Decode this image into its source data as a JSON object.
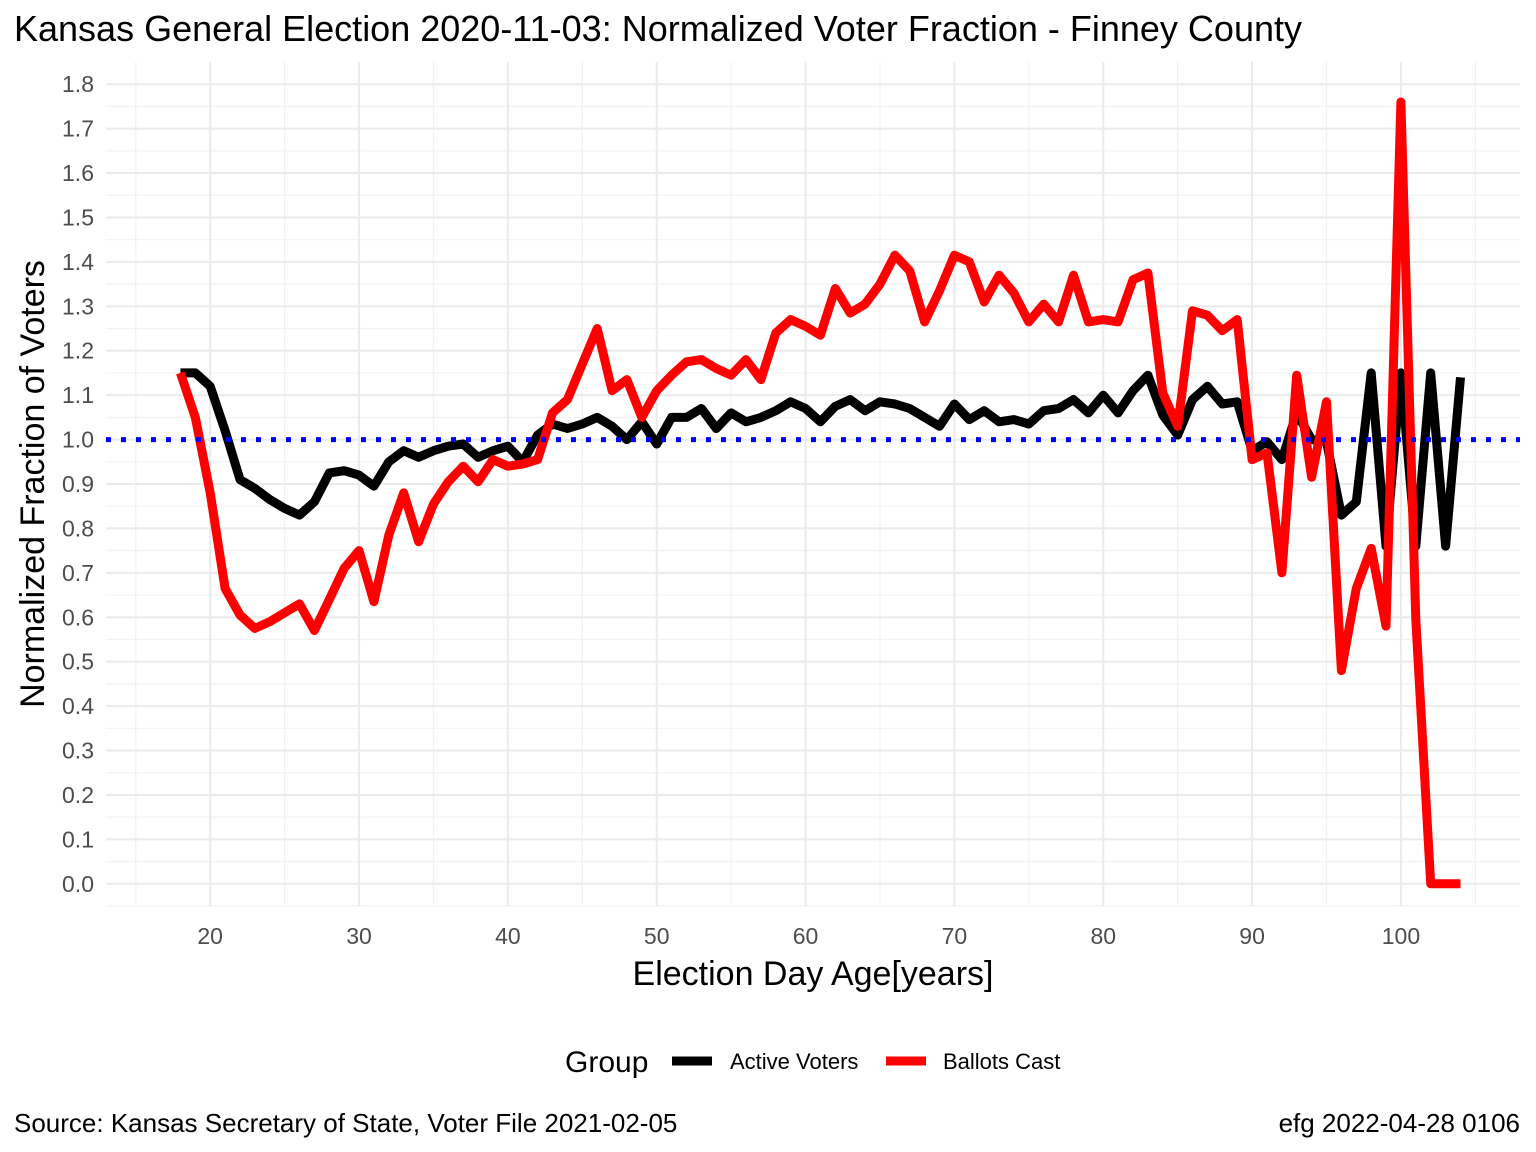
{
  "chart_data": {
    "type": "line",
    "title": "Kansas General Election 2020-11-03:  Normalized Voter Fraction - Finney County",
    "xlabel": "Election Day Age[years]",
    "ylabel": "Normalized Fraction of Voters",
    "xlim": [
      13,
      108
    ],
    "ylim": [
      -0.05,
      1.85
    ],
    "x_ticks": [
      "20",
      "30",
      "40",
      "50",
      "60",
      "70",
      "80",
      "90",
      "100"
    ],
    "x_tick_values": [
      20,
      30,
      40,
      50,
      60,
      70,
      80,
      90,
      100
    ],
    "y_ticks": [
      "0.0",
      "0.1",
      "0.2",
      "0.3",
      "0.4",
      "0.5",
      "0.6",
      "0.7",
      "0.8",
      "0.9",
      "1.0",
      "1.1",
      "1.2",
      "1.3",
      "1.4",
      "1.5",
      "1.6",
      "1.7",
      "1.8"
    ],
    "y_tick_values": [
      0,
      0.1,
      0.2,
      0.3,
      0.4,
      0.5,
      0.6,
      0.7,
      0.8,
      0.9,
      1.0,
      1.1,
      1.2,
      1.3,
      1.4,
      1.5,
      1.6,
      1.7,
      1.8
    ],
    "grid": true,
    "reference_line": {
      "y": 1.0,
      "color": "#0000ff",
      "style": "dotted"
    },
    "legend": {
      "title": "Group",
      "position": "bottom"
    },
    "series": [
      {
        "name": "Active Voters",
        "color": "#000000",
        "x": [
          18,
          19,
          20,
          21,
          22,
          23,
          24,
          25,
          26,
          27,
          28,
          29,
          30,
          31,
          32,
          33,
          34,
          35,
          36,
          37,
          38,
          39,
          40,
          41,
          42,
          43,
          44,
          45,
          46,
          47,
          48,
          49,
          50,
          51,
          52,
          53,
          54,
          55,
          56,
          57,
          58,
          59,
          60,
          61,
          62,
          63,
          64,
          65,
          66,
          67,
          68,
          69,
          70,
          71,
          72,
          73,
          74,
          75,
          76,
          77,
          78,
          79,
          80,
          81,
          82,
          83,
          84,
          85,
          86,
          87,
          88,
          89,
          90,
          91,
          92,
          93,
          94,
          95,
          96,
          97,
          98,
          99,
          100,
          101,
          102,
          103,
          104
        ],
        "values": [
          1.15,
          1.15,
          1.12,
          1.02,
          0.91,
          0.89,
          0.865,
          0.845,
          0.83,
          0.86,
          0.925,
          0.93,
          0.92,
          0.895,
          0.95,
          0.975,
          0.96,
          0.975,
          0.985,
          0.99,
          0.96,
          0.975,
          0.985,
          0.95,
          1.01,
          1.035,
          1.025,
          1.035,
          1.05,
          1.03,
          1.0,
          1.04,
          0.99,
          1.05,
          1.05,
          1.07,
          1.025,
          1.06,
          1.04,
          1.05,
          1.065,
          1.085,
          1.07,
          1.04,
          1.075,
          1.09,
          1.065,
          1.085,
          1.08,
          1.07,
          1.05,
          1.03,
          1.08,
          1.045,
          1.065,
          1.04,
          1.045,
          1.035,
          1.065,
          1.07,
          1.09,
          1.06,
          1.1,
          1.06,
          1.11,
          1.145,
          1.055,
          1.01,
          1.09,
          1.12,
          1.08,
          1.085,
          0.975,
          0.995,
          0.955,
          1.06,
          1.0,
          0.995,
          0.83,
          0.86,
          1.15,
          0.76,
          1.15,
          0.76,
          1.15,
          0.76,
          1.14
        ]
      },
      {
        "name": "Ballots Cast",
        "color": "#ff0000",
        "x": [
          18,
          19,
          20,
          21,
          22,
          23,
          24,
          25,
          26,
          27,
          28,
          29,
          30,
          31,
          32,
          33,
          34,
          35,
          36,
          37,
          38,
          39,
          40,
          41,
          42,
          43,
          44,
          45,
          46,
          47,
          48,
          49,
          50,
          51,
          52,
          53,
          54,
          55,
          56,
          57,
          58,
          59,
          60,
          61,
          62,
          63,
          64,
          65,
          66,
          67,
          68,
          69,
          70,
          71,
          72,
          73,
          74,
          75,
          76,
          77,
          78,
          79,
          80,
          81,
          82,
          83,
          84,
          85,
          86,
          87,
          88,
          89,
          90,
          91,
          92,
          93,
          94,
          95,
          96,
          97,
          98,
          99,
          100,
          101,
          102,
          103,
          104
        ],
        "values": [
          1.15,
          1.05,
          0.88,
          0.665,
          0.605,
          0.575,
          0.59,
          0.61,
          0.63,
          0.57,
          0.64,
          0.71,
          0.75,
          0.635,
          0.785,
          0.88,
          0.77,
          0.855,
          0.905,
          0.94,
          0.905,
          0.955,
          0.94,
          0.945,
          0.955,
          1.06,
          1.09,
          1.17,
          1.25,
          1.11,
          1.135,
          1.05,
          1.11,
          1.145,
          1.175,
          1.18,
          1.16,
          1.145,
          1.18,
          1.135,
          1.24,
          1.27,
          1.255,
          1.235,
          1.34,
          1.285,
          1.305,
          1.35,
          1.415,
          1.38,
          1.265,
          1.335,
          1.415,
          1.4,
          1.31,
          1.37,
          1.33,
          1.265,
          1.305,
          1.265,
          1.37,
          1.265,
          1.27,
          1.265,
          1.36,
          1.375,
          1.105,
          1.03,
          1.29,
          1.28,
          1.245,
          1.27,
          0.955,
          0.97,
          0.7,
          1.145,
          0.915,
          1.085,
          0.48,
          0.665,
          0.755,
          0.58,
          1.76,
          0.595,
          0.0,
          0.0,
          0.0
        ]
      }
    ]
  },
  "caption_left": "Source:  Kansas Secretary of State, Voter File  2021-02-05",
  "caption_right": "efg 2022-04-28 0106"
}
